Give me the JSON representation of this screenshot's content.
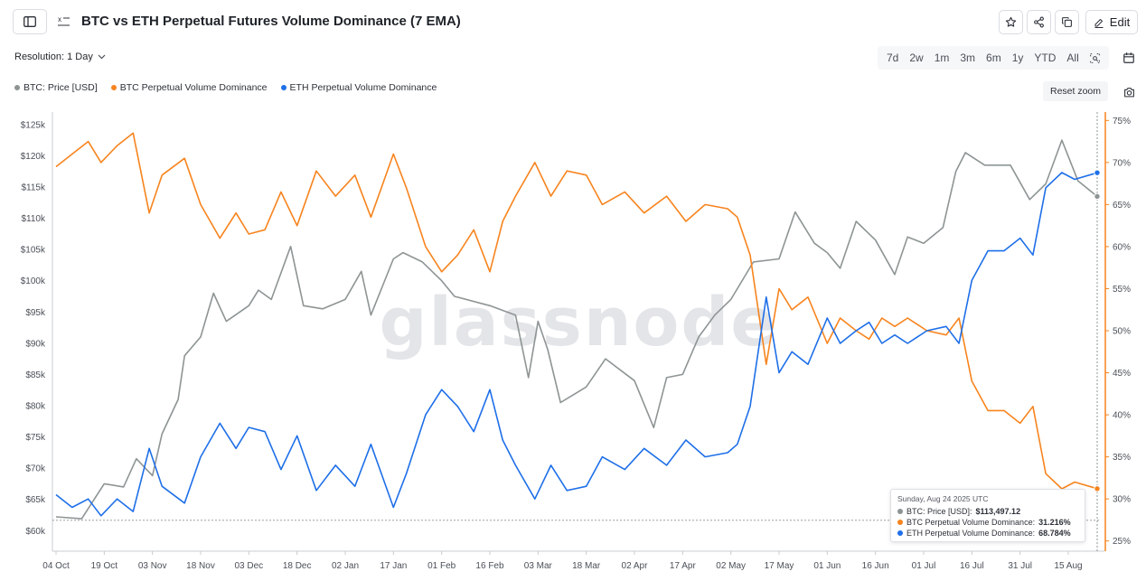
{
  "header": {
    "title": "BTC vs ETH Perpetual Futures Volume Dominance (7 EMA)",
    "edit_label": "Edit"
  },
  "controls": {
    "resolution_label": "Resolution: 1 Day",
    "ranges": [
      "7d",
      "2w",
      "1m",
      "3m",
      "6m",
      "1y",
      "YTD",
      "All"
    ],
    "reset_zoom_label": "Reset zoom"
  },
  "colors": {
    "btc_price": "#8e9494",
    "btc_dominance": "#f7841e",
    "eth_dominance": "#1e6fe8",
    "accent": "#f7841e"
  },
  "icons": [
    "sidebar-icon",
    "variables-icon",
    "star-icon",
    "share-icon",
    "copy-icon",
    "pencil-icon",
    "chevron-down-icon",
    "zoom-select-icon",
    "calendar-icon",
    "camera-icon"
  ],
  "tooltip": {
    "date": "Sunday, Aug 24 2025 UTC",
    "rows": [
      {
        "label": "BTC: Price [USD]: ",
        "value": "$113,497.12"
      },
      {
        "label": "BTC Perpetual Volume Dominance: ",
        "value": "31.216%"
      },
      {
        "label": "ETH Perpetual Volume Dominance: ",
        "value": "68.784%"
      }
    ]
  },
  "chart_data": {
    "type": "line",
    "x_ticks": [
      "04 Oct",
      "19 Oct",
      "03 Nov",
      "18 Nov",
      "03 Dec",
      "18 Dec",
      "02 Jan",
      "17 Jan",
      "01 Feb",
      "16 Feb",
      "03 Mar",
      "18 Mar",
      "02 Apr",
      "17 Apr",
      "02 May",
      "17 May",
      "01 Jun",
      "16 Jun",
      "01 Jul",
      "16 Jul",
      "31 Jul",
      "15 Aug"
    ],
    "y_left_ticks": [
      "$60k",
      "$65k",
      "$70k",
      "$75k",
      "$80k",
      "$85k",
      "$90k",
      "$95k",
      "$100k",
      "$105k",
      "$110k",
      "$115k",
      "$120k",
      "$125k"
    ],
    "y_right_ticks": [
      "25%",
      "30%",
      "35%",
      "40%",
      "45%",
      "50%",
      "55%",
      "60%",
      "65%",
      "70%",
      "75%"
    ],
    "y_left_range": [
      57000,
      127000
    ],
    "y_right_range": [
      24,
      76
    ],
    "x_range": [
      "2024-10-04",
      "2025-08-24"
    ],
    "legend": [
      "BTC: Price [USD]",
      "BTC Perpetual Volume Dominance",
      "ETH Perpetual Volume Dominance"
    ],
    "series": [
      {
        "name": "BTC: Price [USD]",
        "axis": "left",
        "x": [
          "2024-10-04",
          "2024-10-12",
          "2024-10-19",
          "2024-10-25",
          "2024-10-29",
          "2024-11-03",
          "2024-11-06",
          "2024-11-11",
          "2024-11-13",
          "2024-11-18",
          "2024-11-22",
          "2024-11-26",
          "2024-12-03",
          "2024-12-06",
          "2024-12-10",
          "2024-12-16",
          "2024-12-20",
          "2024-12-26",
          "2025-01-02",
          "2025-01-07",
          "2025-01-10",
          "2025-01-17",
          "2025-01-20",
          "2025-01-26",
          "2025-02-01",
          "2025-02-05",
          "2025-02-16",
          "2025-02-24",
          "2025-02-28",
          "2025-03-03",
          "2025-03-06",
          "2025-03-10",
          "2025-03-18",
          "2025-03-24",
          "2025-04-02",
          "2025-04-08",
          "2025-04-12",
          "2025-04-17",
          "2025-04-22",
          "2025-04-27",
          "2025-05-02",
          "2025-05-09",
          "2025-05-17",
          "2025-05-22",
          "2025-05-28",
          "2025-06-01",
          "2025-06-05",
          "2025-06-10",
          "2025-06-16",
          "2025-06-22",
          "2025-06-26",
          "2025-07-01",
          "2025-07-07",
          "2025-07-11",
          "2025-07-14",
          "2025-07-20",
          "2025-07-28",
          "2025-08-03",
          "2025-08-08",
          "2025-08-13",
          "2025-08-18",
          "2025-08-24"
        ],
        "values": [
          62200,
          61900,
          67500,
          67000,
          71500,
          68800,
          75500,
          81000,
          88000,
          91000,
          98000,
          93500,
          96000,
          98500,
          97000,
          105500,
          96000,
          95500,
          97000,
          101500,
          94500,
          103500,
          104500,
          103000,
          100000,
          97500,
          96000,
          94500,
          84500,
          93500,
          89000,
          80500,
          83000,
          87500,
          84000,
          76500,
          84500,
          85000,
          91000,
          94500,
          97000,
          103000,
          103500,
          111000,
          106000,
          104500,
          102000,
          109500,
          106500,
          101000,
          107000,
          106000,
          108500,
          117500,
          120500,
          118500,
          118500,
          113000,
          115500,
          122500,
          116000,
          113497
        ]
      },
      {
        "name": "BTC Perpetual Volume Dominance",
        "axis": "right",
        "x": [
          "2024-10-04",
          "2024-10-09",
          "2024-10-14",
          "2024-10-18",
          "2024-10-23",
          "2024-10-28",
          "2024-11-02",
          "2024-11-06",
          "2024-11-13",
          "2024-11-18",
          "2024-11-24",
          "2024-11-29",
          "2024-12-03",
          "2024-12-08",
          "2024-12-13",
          "2024-12-18",
          "2024-12-24",
          "2024-12-30",
          "2025-01-05",
          "2025-01-10",
          "2025-01-17",
          "2025-01-21",
          "2025-01-27",
          "2025-02-01",
          "2025-02-06",
          "2025-02-11",
          "2025-02-16",
          "2025-02-20",
          "2025-02-24",
          "2025-03-02",
          "2025-03-07",
          "2025-03-12",
          "2025-03-18",
          "2025-03-23",
          "2025-03-30",
          "2025-04-05",
          "2025-04-12",
          "2025-04-18",
          "2025-04-24",
          "2025-05-01",
          "2025-05-04",
          "2025-05-08",
          "2025-05-13",
          "2025-05-17",
          "2025-05-21",
          "2025-05-26",
          "2025-06-01",
          "2025-06-05",
          "2025-06-10",
          "2025-06-14",
          "2025-06-18",
          "2025-06-22",
          "2025-06-26",
          "2025-07-02",
          "2025-07-08",
          "2025-07-12",
          "2025-07-16",
          "2025-07-21",
          "2025-07-26",
          "2025-07-31",
          "2025-08-04",
          "2025-08-08",
          "2025-08-13",
          "2025-08-17",
          "2025-08-24"
        ],
        "values": [
          69.5,
          71,
          72.5,
          70,
          72,
          73.5,
          64,
          68.5,
          70.5,
          65,
          61,
          64,
          61.5,
          62,
          66.5,
          62.5,
          69,
          66,
          68.5,
          63.5,
          71,
          67,
          60,
          57,
          59,
          62,
          57,
          63,
          66,
          70,
          66,
          69,
          68.5,
          65,
          66.5,
          64,
          66,
          63,
          65,
          64.5,
          63.5,
          59,
          46,
          55,
          52.5,
          54,
          48.5,
          51.5,
          50,
          49,
          51.5,
          50.5,
          51.5,
          50,
          49.5,
          51.5,
          44,
          40.5,
          40.5,
          39,
          41,
          33,
          31.2,
          32,
          31.216
        ]
      },
      {
        "name": "ETH Perpetual Volume Dominance",
        "axis": "right",
        "x": [
          "2024-10-04",
          "2024-10-09",
          "2024-10-14",
          "2024-10-18",
          "2024-10-23",
          "2024-10-28",
          "2024-11-02",
          "2024-11-06",
          "2024-11-13",
          "2024-11-18",
          "2024-11-24",
          "2024-11-29",
          "2024-12-03",
          "2024-12-08",
          "2024-12-13",
          "2024-12-18",
          "2024-12-24",
          "2024-12-30",
          "2025-01-05",
          "2025-01-10",
          "2025-01-17",
          "2025-01-21",
          "2025-01-27",
          "2025-02-01",
          "2025-02-06",
          "2025-02-11",
          "2025-02-16",
          "2025-02-20",
          "2025-02-24",
          "2025-03-02",
          "2025-03-07",
          "2025-03-12",
          "2025-03-18",
          "2025-03-23",
          "2025-03-30",
          "2025-04-05",
          "2025-04-12",
          "2025-04-18",
          "2025-04-24",
          "2025-05-01",
          "2025-05-04",
          "2025-05-08",
          "2025-05-13",
          "2025-05-17",
          "2025-05-21",
          "2025-05-26",
          "2025-06-01",
          "2025-06-05",
          "2025-06-10",
          "2025-06-14",
          "2025-06-18",
          "2025-06-22",
          "2025-06-26",
          "2025-07-02",
          "2025-07-08",
          "2025-07-12",
          "2025-07-16",
          "2025-07-21",
          "2025-07-26",
          "2025-07-31",
          "2025-08-04",
          "2025-08-08",
          "2025-08-13",
          "2025-08-17",
          "2025-08-24"
        ],
        "values": [
          30.5,
          29,
          30,
          28,
          30,
          28.5,
          36,
          31.5,
          29.5,
          35,
          39,
          36,
          38.5,
          38,
          33.5,
          37.5,
          31,
          34,
          31.5,
          36.5,
          29,
          33,
          40,
          43,
          41,
          38,
          43,
          37,
          34,
          30,
          34,
          31,
          31.5,
          35,
          33.5,
          36,
          34,
          37,
          35,
          35.5,
          36.5,
          41,
          54,
          45,
          47.5,
          46,
          51.5,
          48.5,
          50,
          51,
          48.5,
          49.5,
          48.5,
          50,
          50.5,
          48.5,
          56,
          59.5,
          59.5,
          61,
          59,
          67,
          68.8,
          68,
          68.784
        ]
      }
    ]
  }
}
